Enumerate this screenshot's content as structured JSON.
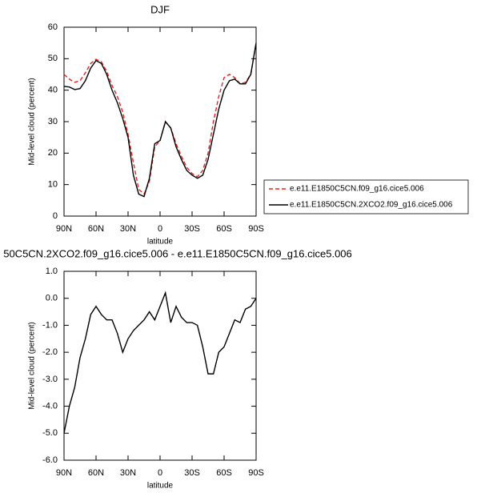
{
  "chart_data": [
    {
      "type": "line",
      "title": "DJF",
      "xlabel": "latitude",
      "ylabel": "Mid-level cloud (percent)",
      "x": [
        90,
        85,
        80,
        75,
        70,
        65,
        60,
        55,
        50,
        45,
        40,
        35,
        30,
        25,
        20,
        15,
        10,
        5,
        0,
        -5,
        -10,
        -15,
        -20,
        -25,
        -30,
        -35,
        -40,
        -45,
        -50,
        -55,
        -60,
        -65,
        -70,
        -75,
        -80,
        -85,
        -90
      ],
      "xlim": [
        90,
        -90
      ],
      "xticks": [
        {
          "value": 90,
          "label": "90N"
        },
        {
          "value": 60,
          "label": "60N"
        },
        {
          "value": 30,
          "label": "30N"
        },
        0,
        {
          "value": -30,
          "label": "30S"
        },
        {
          "value": -60,
          "label": "60S"
        },
        {
          "value": -90,
          "label": "90S"
        }
      ],
      "ylim": [
        0,
        60
      ],
      "yticks": [
        0,
        10,
        20,
        30,
        40,
        50,
        60
      ],
      "legend": "right",
      "series": [
        {
          "name": "e.e11.E1850C5CN.f09_g16.cice5.006",
          "color": "#e8201f",
          "dash": true,
          "values": [
            45,
            43.5,
            42.5,
            43,
            45.5,
            48.5,
            49.8,
            49,
            46,
            41.5,
            38,
            33,
            26,
            17,
            8.5,
            7,
            11,
            22,
            24,
            30,
            28,
            23,
            19,
            15.5,
            13.5,
            12.5,
            14.5,
            20,
            30,
            38,
            44,
            45,
            44,
            42,
            42.5,
            45,
            55
          ]
        },
        {
          "name": "e.e11.E1850C5CN.2XCO2.f09_g16.cice5.006",
          "color": "#000000",
          "dash": false,
          "values": [
            41.2,
            41,
            40.2,
            40.5,
            43,
            47,
            49.4,
            48.5,
            45,
            40,
            36,
            31,
            25,
            13,
            7,
            6.2,
            12,
            23,
            24,
            30,
            28,
            22,
            18,
            14.5,
            13,
            12,
            13,
            18,
            26,
            34,
            40,
            43,
            43.5,
            42,
            42,
            45,
            55
          ]
        }
      ]
    },
    {
      "type": "line",
      "title": "50C5CN.2XCO2.f09_g16.cice5.006 - e.e11.E1850C5CN.f09_g16.cice5.006",
      "xlabel": "latitude",
      "ylabel": "Mid-level cloud (percent)",
      "x": [
        90,
        85,
        80,
        75,
        70,
        65,
        60,
        55,
        50,
        45,
        40,
        35,
        30,
        25,
        20,
        15,
        10,
        5,
        0,
        -5,
        -10,
        -15,
        -20,
        -25,
        -30,
        -35,
        -40,
        -45,
        -50,
        -55,
        -60,
        -65,
        -70,
        -75,
        -80,
        -85,
        -90
      ],
      "xlim": [
        90,
        -90
      ],
      "xticks": [
        {
          "value": 90,
          "label": "90N"
        },
        {
          "value": 60,
          "label": "60N"
        },
        {
          "value": 30,
          "label": "30N"
        },
        0,
        {
          "value": -30,
          "label": "30S"
        },
        {
          "value": -60,
          "label": "60S"
        },
        {
          "value": -90,
          "label": "90S"
        }
      ],
      "ylim": [
        -6,
        1
      ],
      "yticks": [
        {
          "value": 1,
          "label": "1.0"
        },
        {
          "value": 0,
          "label": "0.0"
        },
        {
          "value": -1,
          "label": "-1.0"
        },
        {
          "value": -2,
          "label": "-2.0"
        },
        {
          "value": -3,
          "label": "-3.0"
        },
        {
          "value": -4,
          "label": "-4.0"
        },
        {
          "value": -5,
          "label": "-5.0"
        },
        {
          "value": -6,
          "label": "-6.0"
        }
      ],
      "series": [
        {
          "color": "#000000",
          "dash": false,
          "values": [
            -5.0,
            -4.0,
            -3.3,
            -2.2,
            -1.5,
            -0.6,
            -0.3,
            -0.6,
            -0.8,
            -0.8,
            -1.3,
            -2.0,
            -1.5,
            -1.2,
            -1.0,
            -0.8,
            -0.5,
            -0.8,
            -0.3,
            0.2,
            -0.9,
            -0.3,
            -0.7,
            -0.9,
            -0.9,
            -1.0,
            -1.8,
            -2.8,
            -2.8,
            -2.0,
            -1.8,
            -1.3,
            -0.8,
            -0.9,
            -0.4,
            -0.3,
            0.0
          ]
        }
      ]
    }
  ]
}
